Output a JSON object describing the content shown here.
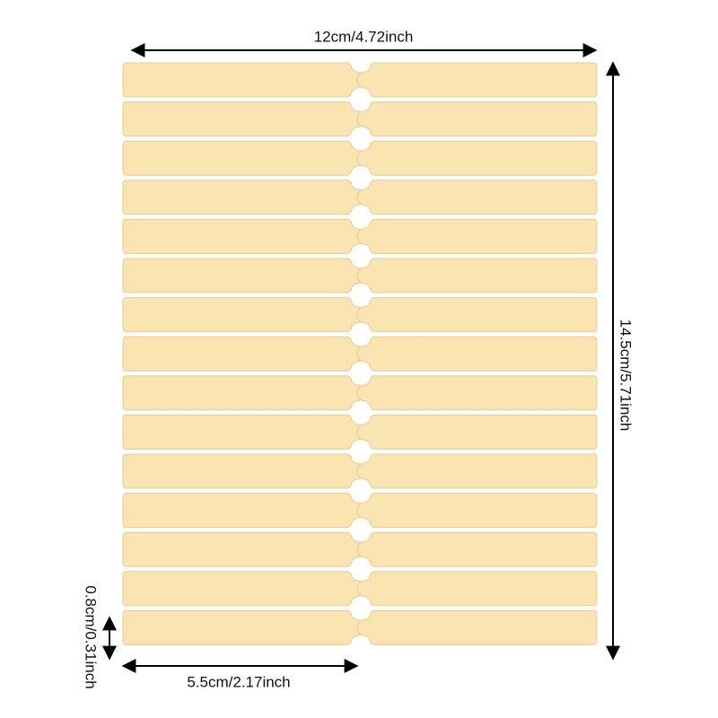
{
  "dimensions": {
    "width_label": "12cm/4.72inch",
    "height_label": "14.5cm/5.71inch",
    "strip_length_label": "5.5cm/2.17inch",
    "strip_height_label": "0.8cm/0.31inch"
  }
}
